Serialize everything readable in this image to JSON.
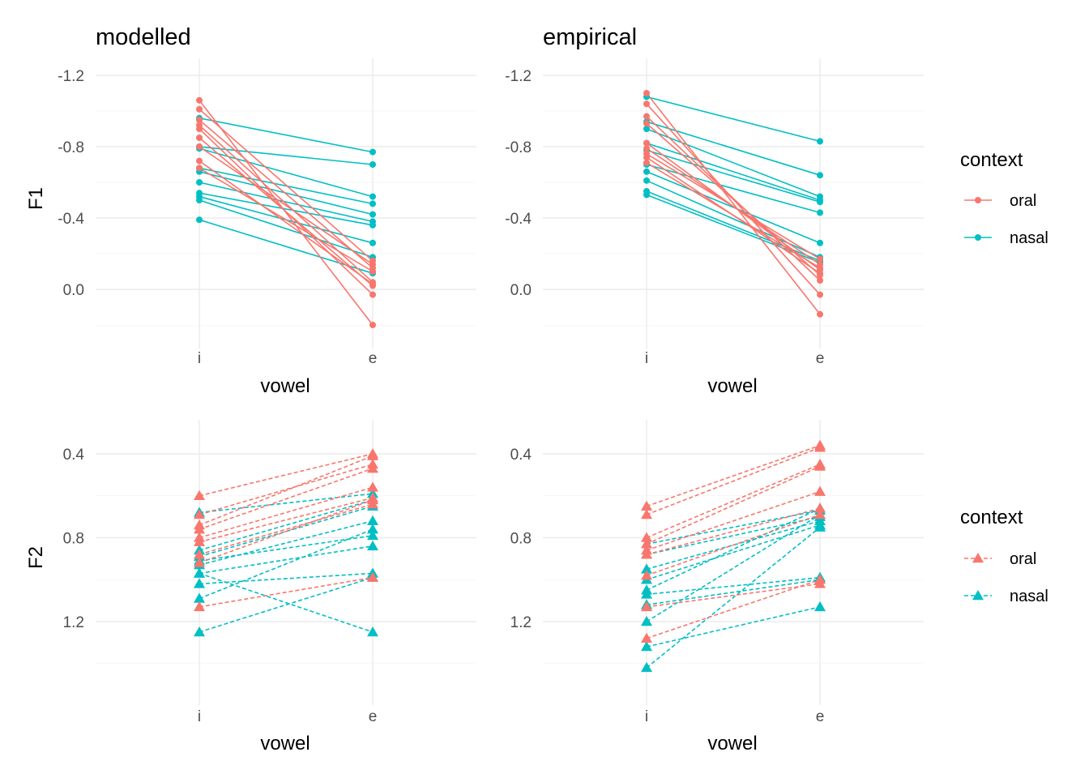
{
  "colors": {
    "oral": "#F8766D",
    "nasal": "#00BFC4"
  },
  "legends": [
    {
      "title": "context",
      "shape": "point",
      "dashed": false,
      "items": [
        {
          "label": "oral",
          "color": "#F8766D"
        },
        {
          "label": "nasal",
          "color": "#00BFC4"
        }
      ]
    },
    {
      "title": "context",
      "shape": "triangle",
      "dashed": true,
      "items": [
        {
          "label": "oral",
          "color": "#F8766D"
        },
        {
          "label": "nasal",
          "color": "#00BFC4"
        }
      ]
    }
  ],
  "chart_data": [
    {
      "type": "line",
      "title": "modelled",
      "xlabel": "vowel",
      "ylabel": "F1",
      "categories": [
        "i",
        "e"
      ],
      "y_reversed": true,
      "ylim": [
        -1.2,
        0.0
      ],
      "yticks": [
        "-1.2",
        "-0.8",
        "-0.4",
        "0.0"
      ],
      "marker": "point",
      "dashed": false,
      "series": [
        {
          "group": "oral",
          "values": [
            -1.06,
            0.2
          ]
        },
        {
          "group": "oral",
          "values": [
            -1.01,
            -0.16
          ]
        },
        {
          "group": "oral",
          "values": [
            -0.95,
            -0.12
          ]
        },
        {
          "group": "oral",
          "values": [
            -0.92,
            -0.04
          ]
        },
        {
          "group": "oral",
          "values": [
            -0.9,
            0.03
          ]
        },
        {
          "group": "oral",
          "values": [
            -0.85,
            -0.02
          ]
        },
        {
          "group": "oral",
          "values": [
            -0.8,
            -0.14
          ]
        },
        {
          "group": "oral",
          "values": [
            -0.72,
            -0.03
          ]
        },
        {
          "group": "oral",
          "values": [
            -0.68,
            -0.1
          ]
        },
        {
          "group": "nasal",
          "values": [
            -0.96,
            -0.77
          ]
        },
        {
          "group": "nasal",
          "values": [
            -0.8,
            -0.7
          ]
        },
        {
          "group": "nasal",
          "values": [
            -0.79,
            -0.52
          ]
        },
        {
          "group": "nasal",
          "values": [
            -0.68,
            -0.48
          ]
        },
        {
          "group": "nasal",
          "values": [
            -0.66,
            -0.42
          ]
        },
        {
          "group": "nasal",
          "values": [
            -0.6,
            -0.38
          ]
        },
        {
          "group": "nasal",
          "values": [
            -0.54,
            -0.36
          ]
        },
        {
          "group": "nasal",
          "values": [
            -0.52,
            -0.26
          ]
        },
        {
          "group": "nasal",
          "values": [
            -0.5,
            -0.18
          ]
        },
        {
          "group": "nasal",
          "values": [
            -0.39,
            -0.09
          ]
        }
      ]
    },
    {
      "type": "line",
      "title": "empirical",
      "xlabel": "vowel",
      "ylabel": "",
      "categories": [
        "i",
        "e"
      ],
      "y_reversed": true,
      "ylim": [
        -1.2,
        0.0
      ],
      "yticks": [
        "-1.2",
        "-0.8",
        "-0.4",
        "0.0"
      ],
      "marker": "point",
      "dashed": false,
      "series": [
        {
          "group": "oral",
          "values": [
            -1.1,
            0.14
          ]
        },
        {
          "group": "oral",
          "values": [
            -1.04,
            0.03
          ]
        },
        {
          "group": "oral",
          "values": [
            -0.97,
            -0.05
          ]
        },
        {
          "group": "oral",
          "values": [
            -0.93,
            -0.08
          ]
        },
        {
          "group": "oral",
          "values": [
            -0.82,
            -0.11
          ]
        },
        {
          "group": "oral",
          "values": [
            -0.79,
            -0.14
          ]
        },
        {
          "group": "oral",
          "values": [
            -0.76,
            -0.17
          ]
        },
        {
          "group": "oral",
          "values": [
            -0.74,
            -0.09
          ]
        },
        {
          "group": "oral",
          "values": [
            -0.71,
            -0.12
          ]
        },
        {
          "group": "nasal",
          "values": [
            -1.08,
            -0.83
          ]
        },
        {
          "group": "nasal",
          "values": [
            -0.94,
            -0.64
          ]
        },
        {
          "group": "nasal",
          "values": [
            -0.9,
            -0.52
          ]
        },
        {
          "group": "nasal",
          "values": [
            -0.82,
            -0.5
          ]
        },
        {
          "group": "nasal",
          "values": [
            -0.78,
            -0.49
          ]
        },
        {
          "group": "nasal",
          "values": [
            -0.7,
            -0.43
          ]
        },
        {
          "group": "nasal",
          "values": [
            -0.66,
            -0.26
          ]
        },
        {
          "group": "nasal",
          "values": [
            -0.61,
            -0.18
          ]
        },
        {
          "group": "nasal",
          "values": [
            -0.55,
            -0.16
          ]
        },
        {
          "group": "nasal",
          "values": [
            -0.53,
            -0.15
          ]
        }
      ]
    },
    {
      "type": "line",
      "title": "",
      "xlabel": "vowel",
      "ylabel": "F2",
      "categories": [
        "i",
        "e"
      ],
      "y_reversed": false,
      "ylim": [
        0.4,
        1.2
      ],
      "yticks": [
        "0.4",
        "0.8",
        "1.2"
      ],
      "marker": "triangle",
      "dashed": true,
      "series": [
        {
          "group": "oral",
          "values": [
            0.6,
            0.4
          ]
        },
        {
          "group": "oral",
          "values": [
            0.69,
            0.45
          ]
        },
        {
          "group": "oral",
          "values": [
            0.74,
            0.41
          ]
        },
        {
          "group": "oral",
          "values": [
            0.76,
            0.47
          ]
        },
        {
          "group": "oral",
          "values": [
            0.8,
            0.56
          ]
        },
        {
          "group": "oral",
          "values": [
            0.82,
            0.61
          ]
        },
        {
          "group": "oral",
          "values": [
            0.88,
            0.64
          ]
        },
        {
          "group": "oral",
          "values": [
            0.92,
            0.62
          ]
        },
        {
          "group": "oral",
          "values": [
            1.13,
            0.99
          ]
        },
        {
          "group": "nasal",
          "values": [
            0.68,
            0.59
          ]
        },
        {
          "group": "nasal",
          "values": [
            0.86,
            0.62
          ]
        },
        {
          "group": "nasal",
          "values": [
            0.89,
            0.65
          ]
        },
        {
          "group": "nasal",
          "values": [
            0.91,
            0.79
          ]
        },
        {
          "group": "nasal",
          "values": [
            0.93,
            0.72
          ]
        },
        {
          "group": "nasal",
          "values": [
            0.97,
            0.84
          ]
        },
        {
          "group": "nasal",
          "values": [
            1.02,
            0.97
          ]
        },
        {
          "group": "nasal",
          "values": [
            1.09,
            0.76
          ]
        },
        {
          "group": "nasal",
          "values": [
            0.97,
            1.25
          ]
        },
        {
          "group": "nasal",
          "values": [
            1.25,
            0.99
          ]
        }
      ]
    },
    {
      "type": "line",
      "title": "",
      "xlabel": "vowel",
      "ylabel": "",
      "categories": [
        "i",
        "e"
      ],
      "y_reversed": false,
      "ylim": [
        0.4,
        1.2
      ],
      "yticks": [
        "0.4",
        "0.8",
        "1.2"
      ],
      "marker": "triangle",
      "dashed": true,
      "series": [
        {
          "group": "oral",
          "values": [
            0.65,
            0.36
          ]
        },
        {
          "group": "oral",
          "values": [
            0.69,
            0.37
          ]
        },
        {
          "group": "oral",
          "values": [
            0.8,
            0.45
          ]
        },
        {
          "group": "oral",
          "values": [
            0.83,
            0.46
          ]
        },
        {
          "group": "oral",
          "values": [
            0.86,
            0.58
          ]
        },
        {
          "group": "oral",
          "values": [
            0.88,
            0.66
          ]
        },
        {
          "group": "oral",
          "values": [
            0.98,
            0.69
          ]
        },
        {
          "group": "oral",
          "values": [
            1.28,
            1.0
          ]
        },
        {
          "group": "oral",
          "values": [
            1.13,
            1.02
          ]
        },
        {
          "group": "nasal",
          "values": [
            0.83,
            0.67
          ]
        },
        {
          "group": "nasal",
          "values": [
            0.88,
            0.7
          ]
        },
        {
          "group": "nasal",
          "values": [
            0.95,
            0.72
          ]
        },
        {
          "group": "nasal",
          "values": [
            1.0,
            0.74
          ]
        },
        {
          "group": "nasal",
          "values": [
            1.07,
            0.99
          ]
        },
        {
          "group": "nasal",
          "values": [
            1.12,
            1.0
          ]
        },
        {
          "group": "nasal",
          "values": [
            1.2,
            0.69
          ]
        },
        {
          "group": "nasal",
          "values": [
            1.32,
            1.13
          ]
        },
        {
          "group": "nasal",
          "values": [
            1.42,
            0.75
          ]
        },
        {
          "group": "nasal",
          "values": [
            1.05,
            0.66
          ]
        }
      ]
    }
  ]
}
